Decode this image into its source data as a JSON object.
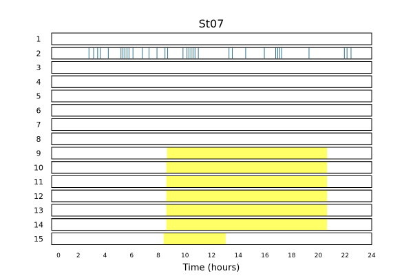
{
  "chart_data": {
    "type": "event-raster",
    "title": "St07",
    "xlabel": "Time (hours)",
    "ylabel": "",
    "xlim": [
      0,
      24
    ],
    "x_ticks": [
      0,
      2,
      4,
      6,
      8,
      10,
      12,
      14,
      16,
      18,
      20,
      22,
      24
    ],
    "grid": false,
    "rows": [
      {
        "label": "1",
        "events": [],
        "spans": []
      },
      {
        "label": "2",
        "events": [
          2.8,
          3.15,
          3.45,
          3.65,
          4.25,
          5.2,
          5.35,
          5.5,
          5.65,
          5.8,
          6.1,
          6.8,
          7.3,
          7.9,
          8.5,
          8.7,
          9.85,
          10.15,
          10.3,
          10.45,
          10.6,
          10.75,
          11.0,
          13.3,
          13.55,
          14.55,
          15.95,
          16.8,
          16.95,
          17.1,
          17.25,
          19.3,
          21.95,
          22.15,
          22.45
        ],
        "spans": []
      },
      {
        "label": "3",
        "events": [],
        "spans": []
      },
      {
        "label": "4",
        "events": [],
        "spans": []
      },
      {
        "label": "5",
        "events": [],
        "spans": []
      },
      {
        "label": "6",
        "events": [],
        "spans": []
      },
      {
        "label": "7",
        "events": [],
        "spans": []
      },
      {
        "label": "8",
        "events": [],
        "spans": []
      },
      {
        "label": "9",
        "events": [],
        "spans": [
          [
            8.65,
            20.65
          ]
        ]
      },
      {
        "label": "10",
        "events": [],
        "spans": [
          [
            8.6,
            20.65
          ]
        ]
      },
      {
        "label": "11",
        "events": [],
        "spans": [
          [
            8.6,
            20.65
          ]
        ]
      },
      {
        "label": "12",
        "events": [],
        "spans": [
          [
            8.6,
            20.65
          ]
        ]
      },
      {
        "label": "13",
        "events": [],
        "spans": [
          [
            8.6,
            20.65
          ]
        ]
      },
      {
        "label": "14",
        "events": [],
        "spans": [
          [
            8.6,
            20.65
          ]
        ]
      },
      {
        "label": "15",
        "events": [],
        "spans": [
          [
            8.4,
            13.05
          ]
        ]
      }
    ],
    "colors": {
      "event": "#2d6f8e",
      "span": "#ffff66",
      "frame": "#000000"
    }
  }
}
